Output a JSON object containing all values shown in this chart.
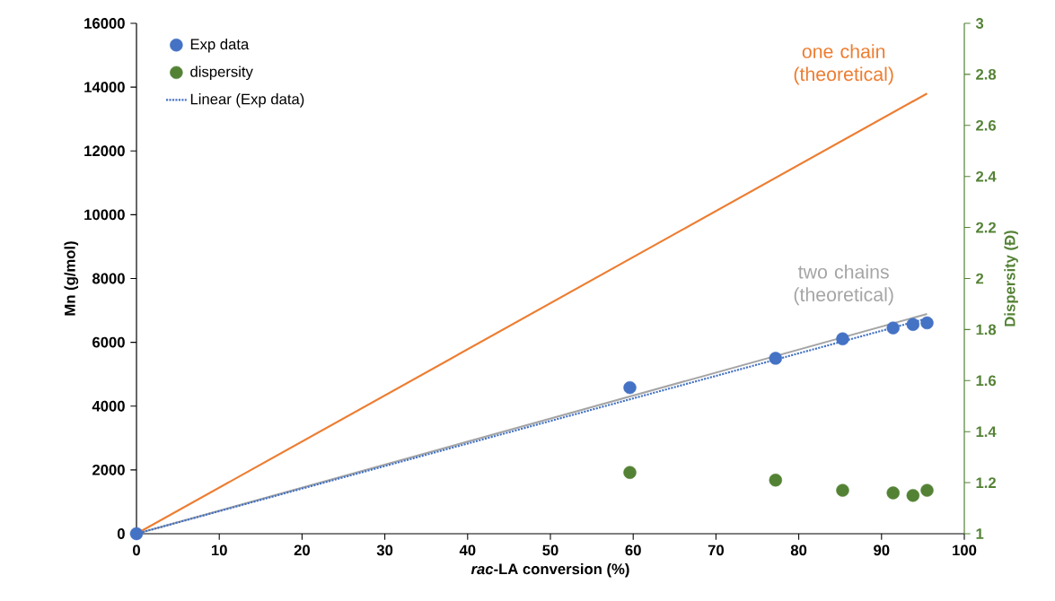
{
  "chart_data": {
    "type": "scatter",
    "xlabel": "*rac*-LA conversion  (%)",
    "ylabel": "Mn (g/mol)",
    "y2label": "Dispersity (Đ)",
    "x": [
      0,
      59.6,
      77.2,
      85.3,
      91.4,
      93.8,
      95.5
    ],
    "series": [
      {
        "name": "Exp data",
        "type": "scatter",
        "marker": "circle",
        "color": "#4472c4",
        "values": [
          0,
          4580,
          5500,
          6110,
          6450,
          6560,
          6610
        ]
      },
      {
        "name": "dispersity",
        "type": "scatter",
        "marker": "circle",
        "axis": "y2",
        "color": "#548235",
        "x": [
          59.6,
          77.2,
          85.3,
          91.4,
          93.8,
          95.5
        ],
        "values": [
          1.24,
          1.21,
          1.17,
          1.16,
          1.15,
          1.17
        ]
      },
      {
        "name": "Linear (Exp data)",
        "type": "line",
        "line_style": "dotted",
        "marker": "none",
        "color": "#4472c4",
        "x": [
          0,
          95.5
        ],
        "values": [
          0,
          6750
        ]
      },
      {
        "name": "one chain (theoretical)",
        "type": "line",
        "line_style": "solid",
        "marker": "none",
        "color": "#ed7d31",
        "x": [
          0,
          95.5
        ],
        "values": [
          0,
          13800
        ]
      },
      {
        "name": "two chains (theoretical)",
        "type": "line",
        "line_style": "solid",
        "marker": "none",
        "color": "#a5a5a5",
        "x": [
          0,
          95.5
        ],
        "values": [
          0,
          6890
        ]
      }
    ],
    "xlim": [
      0,
      100
    ],
    "xticks": [
      0,
      10,
      20,
      30,
      40,
      50,
      60,
      70,
      80,
      90,
      100
    ],
    "ylim": [
      0,
      16000
    ],
    "yticks": [
      0,
      2000,
      4000,
      6000,
      8000,
      10000,
      12000,
      14000,
      16000
    ],
    "y2lim": [
      1,
      3
    ],
    "y2ticks": [
      1,
      1.2,
      1.4,
      1.6,
      1.8,
      2,
      2.2,
      2.4,
      2.6,
      2.8,
      3
    ],
    "grid": false,
    "legend": "top left"
  }
}
